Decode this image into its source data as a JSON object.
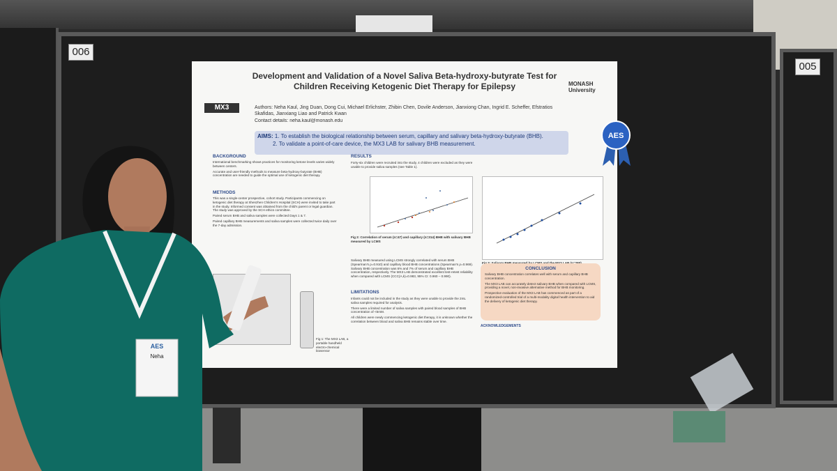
{
  "board_labels": [
    "006",
    "005"
  ],
  "poster": {
    "title": "Development and Validation of a Novel Saliva Beta-hydroxy-butyrate Test for Children Receiving Ketogenic Diet Therapy for Epilepsy",
    "logo_left": "MX3",
    "logo_right": "MONASH University",
    "authors": "Authors: Neha Kaul, Jing Duan, Dong Cui, Michael Erlichster, Zhibin Chen, Dovile Anderson, Jianxiong Chan, Ingrid E. Scheffer, Efstratios Skafidas, Jianxiang Liao and Patrick Kwan",
    "contact": "Contact details: neha.kaul@monash.edu",
    "aims_label": "AIMS:",
    "aims": [
      "1. To establish the biological relationship between serum, capillary and salivary beta-hydroxy-butyrate (BHB).",
      "2. To validate a point-of-care device, the MX3 LAB for salivary BHB measurement."
    ],
    "background_heading": "BACKGROUND",
    "background": [
      "International benchmarking shows practices for monitoring ketone levels varies widely between centers.",
      "Accurate and user-friendly methods to measure beta-hydroxy-butyrate (BHB) concentration are needed to guide the optimal use of ketogenic diet therapy."
    ],
    "methods_heading": "METHODS",
    "methods": [
      "This was a single-center prospective, cohort study. Participants commencing on ketogenic diet therapy at Shenzhen Children's Hospital (SCH) were invited to take part in the study. Informed consent was obtained from the child's parent or legal guardian. The study was approved by the SCH ethics committee.",
      "Paired serum BHB and saliva samples were collected Days 1 & 7.",
      "Paired capillary BHB measurements and saliva samples were collected twice daily over the 7-day admission."
    ],
    "results_heading": "RESULTS",
    "results": [
      "Forty-six children were recruited into the study, 4 children were excluded as they were unable to provide saliva samples (see Table 1).",
      "Salivary BHB measured using LCMS strongly correlated with serum BHB (Spearman's ρ=0.910) and capillary blood BHB concentrations (Spearman's ρ=0.969). Salivary BHB concentration was 6% and 7% of serum and capillary BHB concentration, respectively. The MX3 LAB demonstrated excellent test-retest reliability when compared with LCMS (CCC(A,k)=0.983, 95% CI: 0.960 – 0.990)."
    ],
    "fig2_caption": "Fig 2: Correlation of serum (n=47) and capillary (n=314) BHB with salivary BHB measured by LCMS",
    "fig3_caption": "Fig 3: Salivary BHB measured by LCMS and the MX3 LAB (n=280)",
    "fig1_caption": "Fig 1: The MX3 LAB, a portable handheld electro-chemical biosensor",
    "limitations_heading": "LIMITATIONS",
    "limitations": [
      "Infants could not be included in the study as they were unable to provide the 2mL saliva samples required for analysis.",
      "There were a limited number of saliva samples with paired blood samples of BHB concentration of <5mM.",
      "All children were newly commencing ketogenic diet therapy, it is unknown whether the correlation between blood and saliva BHB remains stable over time."
    ],
    "conclusion_heading": "CONCLUSION",
    "conclusion": [
      "Salivary BHB concentration correlates well with serum and capillary BHB concentration.",
      "The MX3 LAB can accurately detect salivary BHB when compared with LCMS, providing a novel, non-invasive alternative method for BHB monitoring.",
      "Prospective evaluation of the MX3 LAB has commenced as part of a randomized-controlled trial of a multi-modality digital health intervention to aid the delivery of ketogenic diet therapy."
    ],
    "acknowledgements_heading": "ACKNOWLEDGEMENTS"
  },
  "ribbon": "AES",
  "badge": {
    "event": "AES",
    "name": "Neha"
  }
}
